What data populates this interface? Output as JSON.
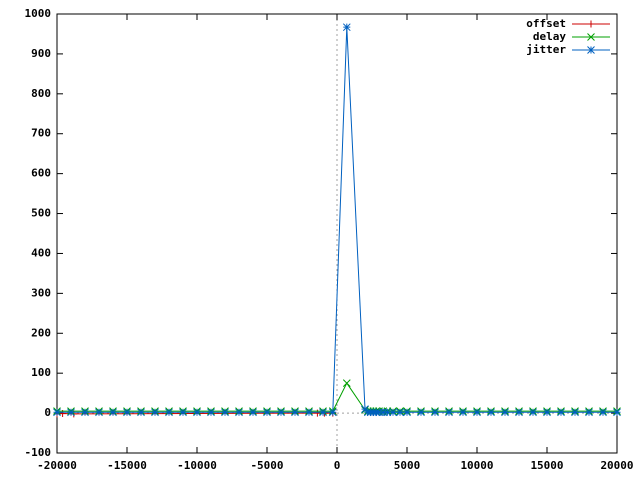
{
  "chart_data": {
    "type": "line",
    "xlim": [
      -20000,
      20000
    ],
    "ylim": [
      -100,
      1000
    ],
    "xticks": [
      -20000,
      -15000,
      -10000,
      -5000,
      0,
      5000,
      10000,
      15000,
      20000
    ],
    "yticks": [
      -100,
      0,
      100,
      200,
      300,
      400,
      500,
      600,
      700,
      800,
      900,
      1000
    ],
    "grid": false,
    "zero_axes": true,
    "legend": "top-right",
    "series": [
      {
        "name": "offset",
        "color": "#cc0000",
        "marker": "plus",
        "x": [
          -20000,
          -19600,
          -18800,
          -1400,
          -900,
          -300
        ],
        "values": [
          -2,
          -1,
          -2,
          0,
          0,
          0
        ]
      },
      {
        "name": "delay",
        "color": "#00a000",
        "marker": "cross",
        "x": [
          -20000,
          -19000,
          -18000,
          -17000,
          -16000,
          -15000,
          -14000,
          -13000,
          -12000,
          -11000,
          -10000,
          -9000,
          -8000,
          -7000,
          -6000,
          -5000,
          -4000,
          -3000,
          -2000,
          -1000,
          -300,
          700,
          2000,
          2200,
          2400,
          2600,
          2800,
          3000,
          3300,
          3600,
          4000,
          4500,
          5000,
          6000,
          7000,
          8000,
          9000,
          10000,
          11000,
          12000,
          13000,
          14000,
          15000,
          16000,
          17000,
          18000,
          19000,
          20000
        ],
        "values": [
          5,
          5,
          5,
          5,
          5,
          5,
          5,
          5,
          5,
          5,
          5,
          5,
          5,
          5,
          5,
          5,
          5,
          5,
          5,
          5,
          5,
          75,
          8,
          5,
          5,
          5,
          5,
          5,
          5,
          5,
          5,
          5,
          5,
          5,
          5,
          5,
          5,
          5,
          5,
          5,
          5,
          5,
          5,
          5,
          5,
          5,
          5,
          5
        ]
      },
      {
        "name": "jitter",
        "color": "#0060c0",
        "marker": "star",
        "x": [
          -20000,
          -19000,
          -18000,
          -17000,
          -16000,
          -15000,
          -14000,
          -13000,
          -12000,
          -11000,
          -10000,
          -9000,
          -8000,
          -7000,
          -6000,
          -5000,
          -4000,
          -3000,
          -2000,
          -1000,
          -300,
          700,
          2000,
          2200,
          2400,
          2600,
          2800,
          3000,
          3300,
          3600,
          4000,
          4500,
          5000,
          6000,
          7000,
          8000,
          9000,
          10000,
          11000,
          12000,
          13000,
          14000,
          15000,
          16000,
          17000,
          18000,
          19000,
          20000
        ],
        "values": [
          2,
          2,
          2,
          2,
          2,
          2,
          2,
          2,
          2,
          2,
          2,
          2,
          2,
          2,
          2,
          2,
          2,
          2,
          2,
          2,
          2,
          967,
          10,
          2,
          2,
          2,
          2,
          2,
          2,
          2,
          2,
          2,
          2,
          2,
          2,
          2,
          2,
          2,
          2,
          2,
          2,
          2,
          2,
          2,
          2,
          2,
          2,
          2
        ]
      }
    ]
  }
}
